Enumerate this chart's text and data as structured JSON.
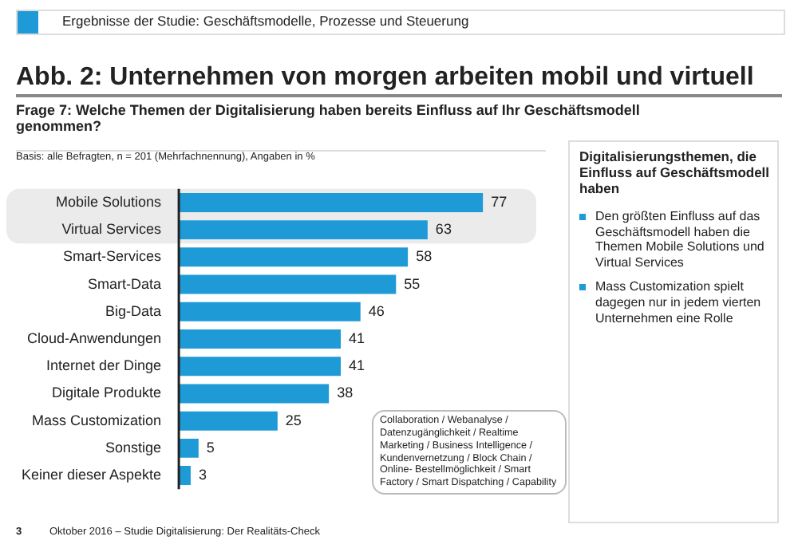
{
  "chart_data": {
    "type": "bar",
    "orientation": "horizontal",
    "title": "Abb. 2: Unternehmen von morgen arbeiten mobil und virtuell",
    "subtitle": "Frage 7: Welche Themen der Digitalisierung haben bereits Einfluss auf Ihr Geschäftsmodell genommen?",
    "categories": [
      "Mobile Solutions",
      "Virtual Services",
      "Smart-Services",
      "Smart-Data",
      "Big-Data",
      "Cloud-Anwendungen",
      "Internet der Dinge",
      "Digitale Produkte",
      "Mass Customization",
      "Sonstige",
      "Keiner dieser Aspekte"
    ],
    "values": [
      77,
      63,
      58,
      55,
      46,
      41,
      41,
      38,
      25,
      5,
      3
    ],
    "color": "#1e9ad6",
    "data_labels": true,
    "legend": false,
    "bands": [
      {
        "axis": "y",
        "from": "Mobile Solutions",
        "to": "Virtual Services",
        "color": "#ebebeb"
      }
    ],
    "annotations": [
      "Ergebnisse der Studie: Geschäftsmodelle, Prozesse und Steuerung",
      "Basis: alle Befragten, n = 201 (Mehrfachnennung), Angaben in %",
      "Digitalisierungsthemen, die Einfluss auf Geschäftsmodell haben",
      "Den größten Einfluss auf das Geschäftsmodell haben die Themen Mobile Solutions und Virtual Services",
      "Mass Customization spielt dagegen nur in jedem vierten Unternehmen eine Rolle",
      "Collaboration / Webanalyse / Datenzugänglichkeit / Realtime Marketing / Business Intelligence / Kundenvernetzung / Block Chain / Online- Bestellmöglichkeit / Smart Factory / Smart Dispatching / Capability",
      "3",
      "Oktober 2016 – Studie Digitalisierung: Der Realitäts-Check"
    ]
  }
}
